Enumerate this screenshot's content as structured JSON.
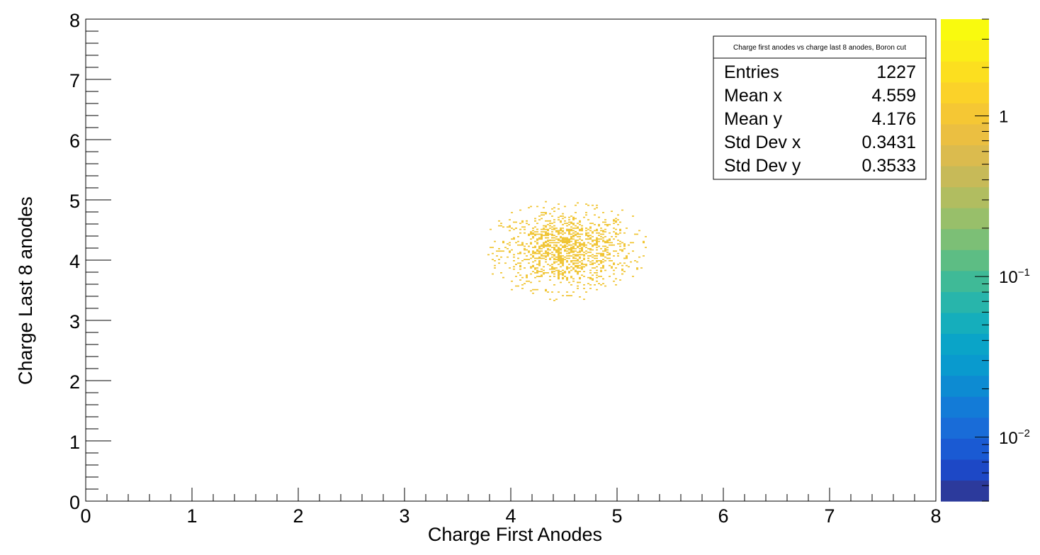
{
  "chart_data": {
    "type": "heatmap",
    "title": "",
    "xlabel": "Charge First Anodes",
    "ylabel": "Charge Last 8 anodes",
    "xlim": [
      0,
      8
    ],
    "ylim": [
      0,
      8
    ],
    "x_ticks": [
      "0",
      "1",
      "2",
      "3",
      "4",
      "5",
      "6",
      "7",
      "8"
    ],
    "y_ticks": [
      "0",
      "1",
      "2",
      "3",
      "4",
      "5",
      "6",
      "7",
      "8"
    ],
    "cluster": {
      "entries": 1227,
      "mean_x": 4.559,
      "mean_y": 4.176,
      "std_x": 0.3431,
      "std_y": 0.3533,
      "x_extent": [
        3.7,
        5.35
      ],
      "y_extent": [
        3.3,
        5.05
      ],
      "bin_content": 1,
      "color": "#f0c432"
    },
    "colorbar": {
      "scale": "log",
      "range": [
        0.004,
        4
      ],
      "tick_labels": [
        {
          "value": 0.01,
          "base": "10",
          "exp": "−2"
        },
        {
          "value": 0.1,
          "base": "10",
          "exp": "−1"
        },
        {
          "value": 1,
          "base": "1",
          "exp": ""
        }
      ],
      "palette": [
        "#2c3a9c",
        "#1d48c6",
        "#1a5ad3",
        "#196cd8",
        "#137bd7",
        "#0d8bd2",
        "#099ace",
        "#0aa4c8",
        "#15aebc",
        "#28b5ab",
        "#3fba97",
        "#5dbd84",
        "#7cbf76",
        "#98bf6a",
        "#b1bd60",
        "#c7ba58",
        "#dbbb4e",
        "#ebbf41",
        "#f5c734",
        "#fbd229",
        "#fcdf1f",
        "#fbee17",
        "#f9fa0e"
      ]
    },
    "stats": {
      "title": "Charge first anodes vs charge last 8 anodes, Boron cut",
      "rows": [
        {
          "label": "Entries",
          "value": "1227"
        },
        {
          "label": "Mean x",
          "value": "4.559"
        },
        {
          "label": "Mean y",
          "value": "4.176"
        },
        {
          "label": "Std Dev x",
          "value": "0.3431"
        },
        {
          "label": "Std Dev y",
          "value": "0.3533"
        }
      ]
    }
  }
}
